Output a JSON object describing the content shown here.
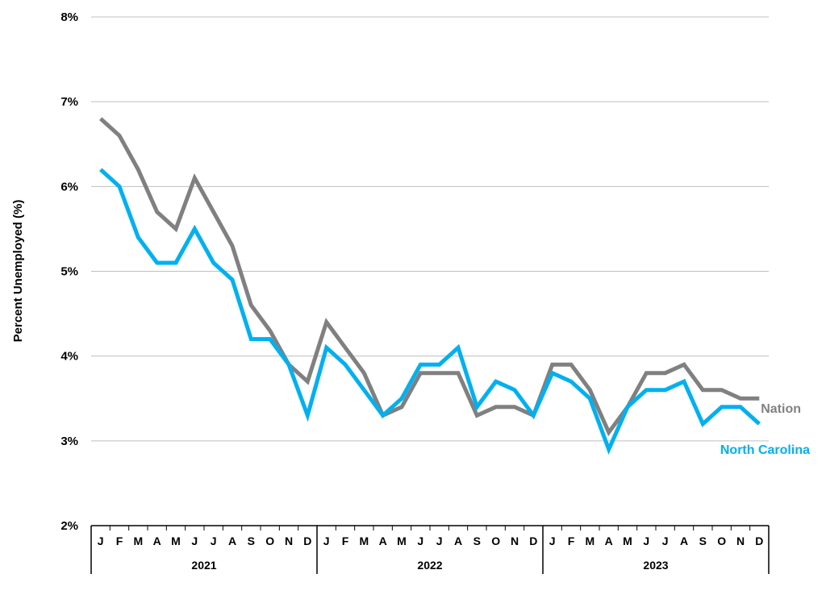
{
  "chart_data": {
    "type": "line",
    "title": "",
    "ylabel": "Percent Unemployed (%)",
    "xlabel": "",
    "ylim": [
      2,
      8
    ],
    "y_ticks": [
      "2%",
      "3%",
      "4%",
      "5%",
      "6%",
      "7%",
      "8%"
    ],
    "grid": true,
    "months": [
      "J",
      "F",
      "M",
      "A",
      "M",
      "J",
      "J",
      "A",
      "S",
      "O",
      "N",
      "D",
      "J",
      "F",
      "M",
      "A",
      "M",
      "J",
      "J",
      "A",
      "S",
      "O",
      "N",
      "D",
      "J",
      "F",
      "M",
      "A",
      "M",
      "J",
      "J",
      "A",
      "S",
      "O",
      "N",
      "D"
    ],
    "years": [
      "2021",
      "2022",
      "2023"
    ],
    "series": [
      {
        "name": "Nation",
        "color": "#808080",
        "values": [
          6.8,
          6.6,
          6.2,
          5.7,
          5.5,
          6.1,
          5.7,
          5.3,
          4.6,
          4.3,
          3.9,
          3.7,
          4.4,
          4.1,
          3.8,
          3.3,
          3.4,
          3.8,
          3.8,
          3.8,
          3.3,
          3.4,
          3.4,
          3.3,
          3.9,
          3.9,
          3.6,
          3.1,
          3.4,
          3.8,
          3.8,
          3.9,
          3.6,
          3.6,
          3.5,
          3.5
        ]
      },
      {
        "name": "North Carolina",
        "color": "#00B0F0",
        "values": [
          6.2,
          6.0,
          5.4,
          5.1,
          5.1,
          5.5,
          5.1,
          4.9,
          4.2,
          4.2,
          3.9,
          3.3,
          4.1,
          3.9,
          3.6,
          3.3,
          3.5,
          3.9,
          3.9,
          4.1,
          3.4,
          3.7,
          3.6,
          3.3,
          3.8,
          3.7,
          3.5,
          2.9,
          3.4,
          3.6,
          3.6,
          3.7,
          3.2,
          3.4,
          3.4,
          3.2
        ]
      }
    ]
  }
}
